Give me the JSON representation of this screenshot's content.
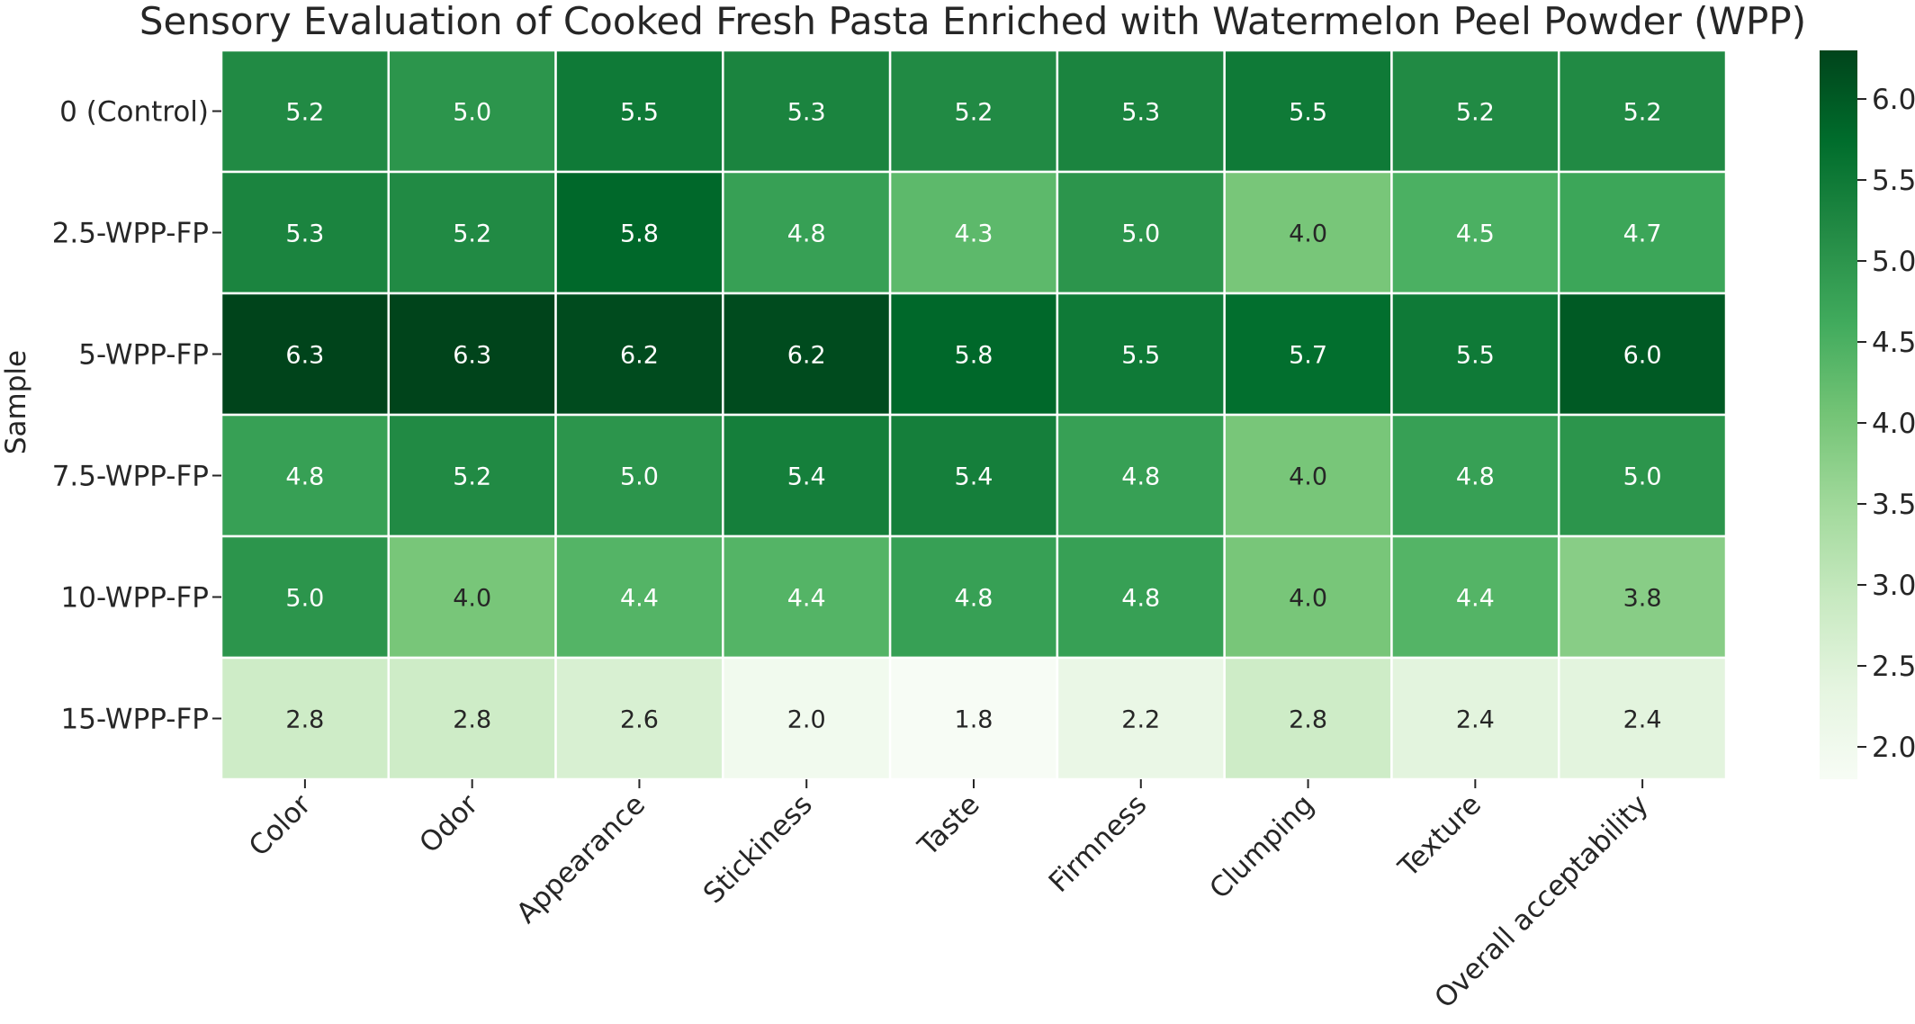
{
  "chart_data": {
    "type": "heatmap",
    "title": "Sensory Evaluation of Cooked Fresh Pasta Enriched with Watermelon Peel Powder (WPP)",
    "xlabel": "",
    "ylabel": "Sample",
    "x_categories": [
      "Color",
      "Odor",
      "Appearance",
      "Stickiness",
      "Taste",
      "Firmness",
      "Clumping",
      "Texture",
      "Overall acceptability"
    ],
    "y_categories": [
      "0 (Control)",
      "2.5-WPP-FP",
      "5-WPP-FP",
      "7.5-WPP-FP",
      "10-WPP-FP",
      "15-WPP-FP"
    ],
    "values": [
      [
        5.2,
        5.0,
        5.5,
        5.3,
        5.2,
        5.3,
        5.5,
        5.2,
        5.2
      ],
      [
        5.3,
        5.2,
        5.8,
        4.8,
        4.3,
        5.0,
        4.0,
        4.5,
        4.7
      ],
      [
        6.3,
        6.3,
        6.2,
        6.2,
        5.8,
        5.5,
        5.7,
        5.5,
        6.0
      ],
      [
        4.8,
        5.2,
        5.0,
        5.4,
        5.4,
        4.8,
        4.0,
        4.8,
        5.0
      ],
      [
        5.0,
        4.0,
        4.4,
        4.4,
        4.8,
        4.8,
        4.0,
        4.4,
        3.8
      ],
      [
        2.8,
        2.8,
        2.6,
        2.0,
        1.8,
        2.2,
        2.8,
        2.4,
        2.4
      ]
    ],
    "colormap": "Greens",
    "color_range": [
      1.8,
      6.3
    ],
    "colorbar_ticks": [
      "2.0",
      "2.5",
      "3.0",
      "3.5",
      "4.0",
      "4.5",
      "5.0",
      "5.5",
      "6.0"
    ],
    "colorbar_tick_values": [
      2.0,
      2.5,
      3.0,
      3.5,
      4.0,
      4.5,
      5.0,
      5.5,
      6.0
    ],
    "grid": false,
    "cell_borders": "white"
  }
}
